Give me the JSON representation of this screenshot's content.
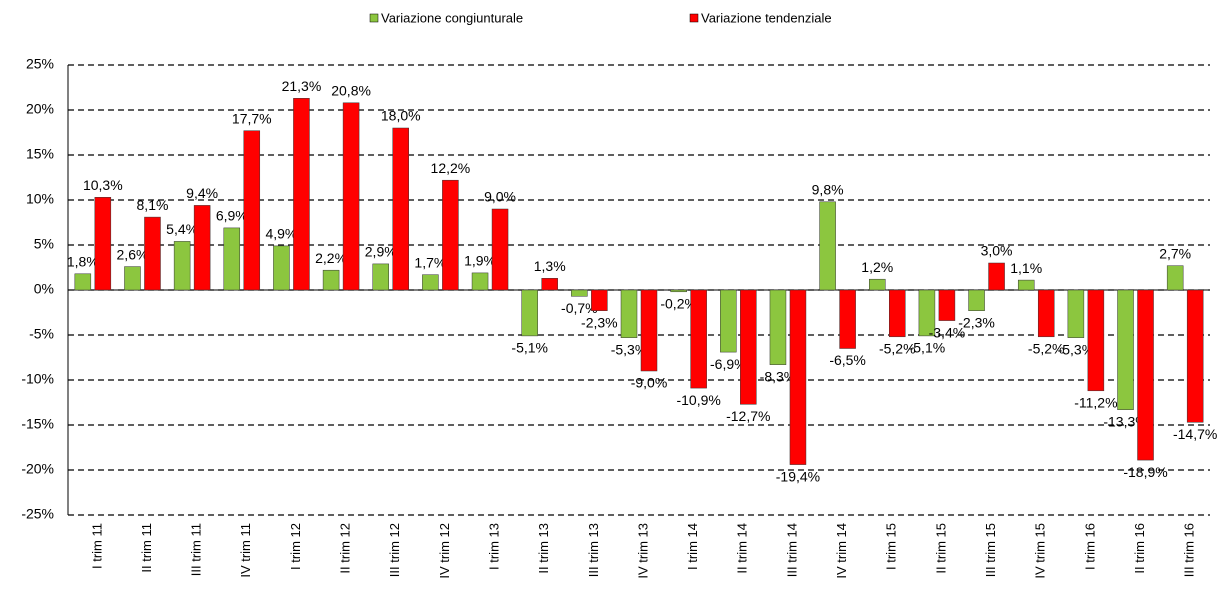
{
  "chart_data": {
    "type": "bar",
    "categories": [
      "I trim 11",
      "II trim 11",
      "III trim 11",
      "IV trim 11",
      "I trim 12",
      "II trim 12",
      "III trim 12",
      "IV trim 12",
      "I trim 13",
      "II trim 13",
      "III trim 13",
      "IV trim 13",
      "I trim 14",
      "II trim 14",
      "III trim 14",
      "IV trim 14",
      "I trim 15",
      "II trim 15",
      "III trim 15",
      "IV trim 15",
      "I trim 16",
      "II trim 16",
      "III trim 16"
    ],
    "series": [
      {
        "name": "Variazione congiunturale",
        "color": "#8cc63f",
        "values": [
          1.8,
          2.6,
          5.4,
          6.9,
          4.9,
          2.2,
          2.9,
          1.7,
          1.9,
          -5.1,
          -0.7,
          -5.3,
          -0.2,
          -6.9,
          -8.3,
          9.8,
          1.2,
          -5.1,
          -2.3,
          1.1,
          -5.3,
          -13.3,
          2.7
        ],
        "value_labels": [
          "1,8%",
          "2,6%",
          "5,4%",
          "6,9%",
          "4,9%",
          "2,2%",
          "2,9%",
          "1,7%",
          "1,9%",
          "-5,1%",
          "-0,7%",
          "-5,3%",
          "-0,2%",
          "-6,9%",
          "-8,3%",
          "9,8%",
          "1,2%",
          "-5,1%",
          "-2,3%",
          "1,1%",
          "-5,3%",
          "-13,3%",
          "2,7%"
        ]
      },
      {
        "name": "Variazione tendenziale",
        "color": "#ff0000",
        "values": [
          10.3,
          8.1,
          9.4,
          17.7,
          21.3,
          20.8,
          18.0,
          12.2,
          9.0,
          1.3,
          -2.3,
          -9.0,
          -10.9,
          -12.7,
          -19.4,
          -6.5,
          -5.2,
          -3.4,
          3.0,
          -5.2,
          -11.2,
          -18.9,
          -14.7
        ],
        "value_labels": [
          "10,3%",
          "8,1%",
          "9,4%",
          "17,7%",
          "21,3%",
          "20,8%",
          "18,0%",
          "12,2%",
          "9,0%",
          "1,3%",
          "-2,3%",
          "-9,0%",
          "-10,9%",
          "-12,7%",
          "-19,4%",
          "-6,5%",
          "-5,2%",
          "-3,4%",
          "3,0%",
          "-5,2%",
          "-11,2%",
          "-18,9%",
          "-14,7%"
        ]
      }
    ],
    "ylim": [
      -25,
      25
    ],
    "yticks": [
      {
        "value": -25,
        "label": "-25%"
      },
      {
        "value": -20,
        "label": "-20%"
      },
      {
        "value": -15,
        "label": "-15%"
      },
      {
        "value": -10,
        "label": "-10%"
      },
      {
        "value": -5,
        "label": "-5%"
      },
      {
        "value": 0,
        "label": "0%"
      },
      {
        "value": 5,
        "label": "5%"
      },
      {
        "value": 10,
        "label": "10%"
      },
      {
        "value": 15,
        "label": "15%"
      },
      {
        "value": 20,
        "label": "20%"
      },
      {
        "value": 25,
        "label": "25%"
      }
    ],
    "grid": true,
    "legend": "top"
  }
}
